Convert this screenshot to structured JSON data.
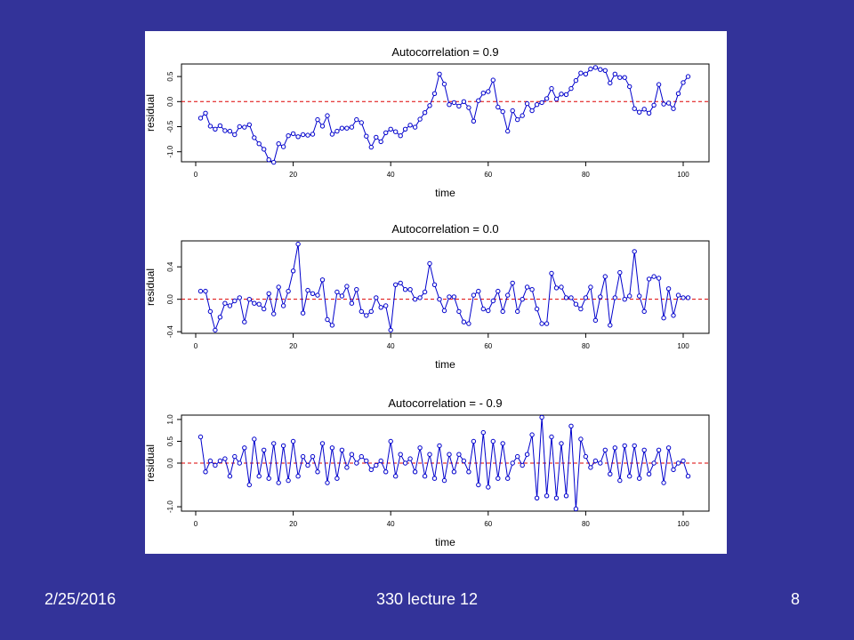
{
  "footer": {
    "date": "2/25/2016",
    "title": "330 lecture 12",
    "page": "8"
  },
  "colors": {
    "background": "#333399",
    "series": "#0000cc",
    "reference": "#dd0000"
  },
  "chart_data": [
    {
      "type": "line",
      "title": "Autocorrelation = 0.9",
      "xlabel": "time",
      "ylabel": "residual",
      "xlim": [
        1,
        101
      ],
      "ylim": [
        -1.2,
        0.75
      ],
      "xticks": [
        0,
        20,
        40,
        60,
        80,
        100
      ],
      "yticks": [
        -1.0,
        -0.5,
        0.0,
        0.5
      ],
      "ytick_labels": [
        "-1.0",
        "-0.5",
        "0.0",
        "0.5"
      ],
      "reference_line": 0,
      "values": [
        -0.33,
        -0.23,
        -0.49,
        -0.55,
        -0.48,
        -0.58,
        -0.59,
        -0.66,
        -0.5,
        -0.51,
        -0.46,
        -0.72,
        -0.84,
        -0.95,
        -1.16,
        -1.21,
        -0.84,
        -0.9,
        -0.68,
        -0.64,
        -0.7,
        -0.66,
        -0.67,
        -0.65,
        -0.36,
        -0.49,
        -0.28,
        -0.65,
        -0.59,
        -0.53,
        -0.53,
        -0.51,
        -0.36,
        -0.42,
        -0.69,
        -0.91,
        -0.71,
        -0.8,
        -0.62,
        -0.55,
        -0.6,
        -0.68,
        -0.55,
        -0.47,
        -0.51,
        -0.35,
        -0.22,
        -0.08,
        0.16,
        0.55,
        0.35,
        -0.06,
        -0.02,
        -0.09,
        0.0,
        -0.12,
        -0.39,
        0.02,
        0.17,
        0.2,
        0.43,
        -0.11,
        -0.2,
        -0.59,
        -0.18,
        -0.36,
        -0.28,
        -0.04,
        -0.18,
        -0.06,
        -0.02,
        0.06,
        0.26,
        0.05,
        0.15,
        0.14,
        0.26,
        0.42,
        0.57,
        0.55,
        0.65,
        0.68,
        0.64,
        0.62,
        0.37,
        0.55,
        0.48,
        0.48,
        0.3,
        -0.14,
        -0.21,
        -0.15,
        -0.23,
        -0.07,
        0.34,
        -0.05,
        -0.03,
        -0.14,
        0.16,
        0.38,
        0.5
      ]
    },
    {
      "type": "line",
      "title": "Autocorrelation = 0.0",
      "xlabel": "time",
      "ylabel": "residual",
      "xlim": [
        1,
        101
      ],
      "ylim": [
        -0.42,
        0.72
      ],
      "xticks": [
        0,
        20,
        40,
        60,
        80,
        100
      ],
      "yticks": [
        -0.4,
        0.0,
        0.4
      ],
      "ytick_labels": [
        "-0.4",
        "0.0",
        "0.4"
      ],
      "reference_line": 0,
      "values": [
        0.1,
        0.1,
        -0.15,
        -0.38,
        -0.22,
        -0.05,
        -0.08,
        -0.02,
        0.02,
        -0.28,
        0.0,
        -0.05,
        -0.06,
        -0.12,
        0.07,
        -0.18,
        0.15,
        -0.08,
        0.1,
        0.35,
        0.68,
        -0.17,
        0.11,
        0.07,
        0.05,
        0.24,
        -0.25,
        -0.32,
        0.09,
        0.04,
        0.16,
        -0.05,
        0.12,
        -0.15,
        -0.2,
        -0.15,
        0.02,
        -0.1,
        -0.08,
        -0.38,
        0.18,
        0.2,
        0.12,
        0.12,
        0.0,
        0.02,
        0.09,
        0.44,
        0.18,
        0.0,
        -0.14,
        0.03,
        0.03,
        -0.15,
        -0.28,
        -0.3,
        0.05,
        0.1,
        -0.12,
        -0.14,
        -0.02,
        0.1,
        -0.15,
        0.05,
        0.2,
        -0.15,
        0.0,
        0.15,
        0.12,
        -0.12,
        -0.3,
        -0.3,
        0.32,
        0.14,
        0.15,
        0.02,
        0.02,
        -0.06,
        -0.12,
        0.02,
        0.15,
        -0.26,
        0.03,
        0.28,
        -0.32,
        0.02,
        0.33,
        0.0,
        0.04,
        0.59,
        0.04,
        -0.15,
        0.25,
        0.28,
        0.26,
        -0.23,
        0.13,
        -0.2,
        0.05,
        0.02,
        0.02
      ]
    },
    {
      "type": "line",
      "title": "Autocorrelation = - 0.9",
      "xlabel": "time",
      "ylabel": "residual",
      "xlim": [
        1,
        101
      ],
      "ylim": [
        -1.1,
        1.1
      ],
      "xticks": [
        0,
        20,
        40,
        60,
        80,
        100
      ],
      "yticks": [
        -1.0,
        0.0,
        0.5,
        1.0
      ],
      "ytick_labels": [
        "-1.0",
        "0.0",
        "0.5",
        "1.0"
      ],
      "reference_line": 0,
      "values": [
        0.6,
        -0.2,
        0.05,
        -0.05,
        0.05,
        0.1,
        -0.3,
        0.15,
        0.0,
        0.35,
        -0.5,
        0.55,
        -0.3,
        0.3,
        -0.35,
        0.45,
        -0.45,
        0.4,
        -0.4,
        0.5,
        -0.3,
        0.15,
        -0.05,
        0.15,
        -0.2,
        0.45,
        -0.45,
        0.35,
        -0.35,
        0.3,
        -0.1,
        0.2,
        0.0,
        0.15,
        0.05,
        -0.15,
        -0.05,
        0.05,
        -0.2,
        0.5,
        -0.3,
        0.2,
        0.0,
        0.1,
        -0.2,
        0.35,
        -0.3,
        0.2,
        -0.35,
        0.4,
        -0.4,
        0.2,
        -0.2,
        0.2,
        0.05,
        -0.2,
        0.5,
        -0.5,
        0.7,
        -0.55,
        0.5,
        -0.35,
        0.45,
        -0.35,
        0.0,
        0.15,
        -0.05,
        0.2,
        0.65,
        -0.8,
        1.05,
        -0.75,
        0.6,
        -0.8,
        0.45,
        -0.75,
        0.85,
        -1.05,
        0.55,
        0.15,
        -0.1,
        0.05,
        0.0,
        0.3,
        -0.25,
        0.35,
        -0.4,
        0.4,
        -0.3,
        0.4,
        -0.35,
        0.3,
        -0.25,
        0.0,
        0.3,
        -0.45,
        0.35,
        -0.15,
        0.0,
        0.05,
        -0.3
      ]
    }
  ]
}
